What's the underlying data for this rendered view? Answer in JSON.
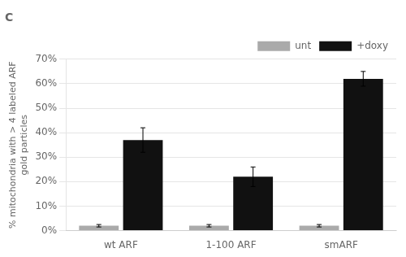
{
  "chart_data": {
    "type": "bar",
    "title": "C",
    "categories": [
      "wt ARF",
      "1-100 ARF",
      "smARF"
    ],
    "series": [
      {
        "name": "unt",
        "color": "#aaaaaa",
        "values": [
          2.0,
          2.0,
          2.0
        ],
        "errors": [
          0.5,
          0.5,
          0.5
        ]
      },
      {
        "name": "+doxy",
        "color": "#111111",
        "values": [
          37.0,
          22.0,
          62.0
        ],
        "errors": [
          5.0,
          4.0,
          3.0
        ]
      }
    ],
    "ylabel": "% mitochondria with > 4 labeled ARF\ngold particles",
    "ylim": [
      0,
      70
    ],
    "yticks": [
      {
        "value": 0,
        "label": "0%"
      },
      {
        "value": 10,
        "label": "10%"
      },
      {
        "value": 20,
        "label": "20%"
      },
      {
        "value": 30,
        "label": "30%"
      },
      {
        "value": 40,
        "label": "40%"
      },
      {
        "value": 50,
        "label": "50%"
      },
      {
        "value": 60,
        "label": "60%"
      },
      {
        "value": 70,
        "label": "70%"
      }
    ],
    "grid": true,
    "legend": "top"
  }
}
